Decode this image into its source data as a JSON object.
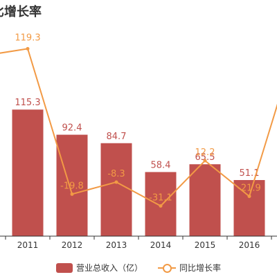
{
  "colors": {
    "bar": "#c0504d",
    "bar_label": "#c0504d",
    "line": "#f29a45",
    "axis": "#333333",
    "tick_text": "#333333"
  },
  "chart_data": {
    "type": "bar",
    "title": "比增长率",
    "categories": [
      "2011",
      "2012",
      "2013",
      "2014",
      "2015",
      "2016"
    ],
    "series": [
      {
        "name": "营业总收入（亿）",
        "type": "bar",
        "axis": "left",
        "values": [
          115.3,
          92.4,
          84.7,
          58.4,
          65.5,
          51.1
        ]
      },
      {
        "name": "同比增长率",
        "type": "line",
        "axis": "right",
        "values": [
          119.3,
          -19.8,
          -8.3,
          -31.1,
          12.2,
          -21.9
        ]
      }
    ],
    "left_axis": {
      "ylim": [
        0,
        200
      ],
      "tick_labels_visible": false
    },
    "right_axis": {
      "ylim": [
        -60,
        150
      ],
      "tick_labels_visible": false
    },
    "line_continues_off_left": true,
    "line_continues_off_right": true,
    "grid": false,
    "legend": "bottom"
  }
}
